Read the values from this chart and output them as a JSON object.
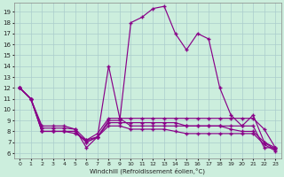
{
  "xlabel": "Windchill (Refroidissement éolien,°C)",
  "xlim": [
    -0.5,
    23.5
  ],
  "ylim": [
    5.5,
    19.8
  ],
  "xticks": [
    0,
    1,
    2,
    3,
    4,
    5,
    6,
    7,
    8,
    9,
    10,
    11,
    12,
    13,
    14,
    15,
    16,
    17,
    18,
    19,
    20,
    21,
    22,
    23
  ],
  "yticks": [
    6,
    7,
    8,
    9,
    10,
    11,
    12,
    13,
    14,
    15,
    16,
    17,
    18,
    19
  ],
  "bg_color": "#cceedd",
  "line_color": "#880088",
  "lines": [
    [
      12,
      11,
      8,
      8,
      8,
      8,
      7,
      7.5,
      9,
      9,
      18,
      18.5,
      19.3,
      19.5,
      17,
      15.5,
      17,
      16.5,
      12,
      9.5,
      8.5,
      9.5,
      7,
      6.5
    ],
    [
      12,
      11,
      8.5,
      8.5,
      8.5,
      8.2,
      6.5,
      7.5,
      14,
      9.2,
      8.5,
      8.5,
      8.5,
      8.5,
      8.5,
      8.5,
      8.5,
      8.5,
      8.5,
      8.5,
      8.5,
      8.5,
      6.5,
      6.5
    ],
    [
      12,
      11,
      8.3,
      8.3,
      8.3,
      8.2,
      7.2,
      7.8,
      9.2,
      9.2,
      9.2,
      9.2,
      9.2,
      9.2,
      9.2,
      9.2,
      9.2,
      9.2,
      9.2,
      9.2,
      9.2,
      9.2,
      8.2,
      6.5
    ],
    [
      12,
      11,
      8,
      8,
      8,
      8,
      7,
      7.5,
      8.8,
      8.8,
      8.8,
      8.8,
      8.8,
      8.8,
      8.8,
      8.5,
      8.5,
      8.5,
      8.5,
      8.2,
      8.0,
      8.0,
      7.0,
      6.3
    ],
    [
      12,
      11,
      8,
      8,
      8,
      7.8,
      7.2,
      7.5,
      8.5,
      8.5,
      8.2,
      8.2,
      8.2,
      8.2,
      8.0,
      7.8,
      7.8,
      7.8,
      7.8,
      7.8,
      7.8,
      7.8,
      6.8,
      6.2
    ]
  ]
}
